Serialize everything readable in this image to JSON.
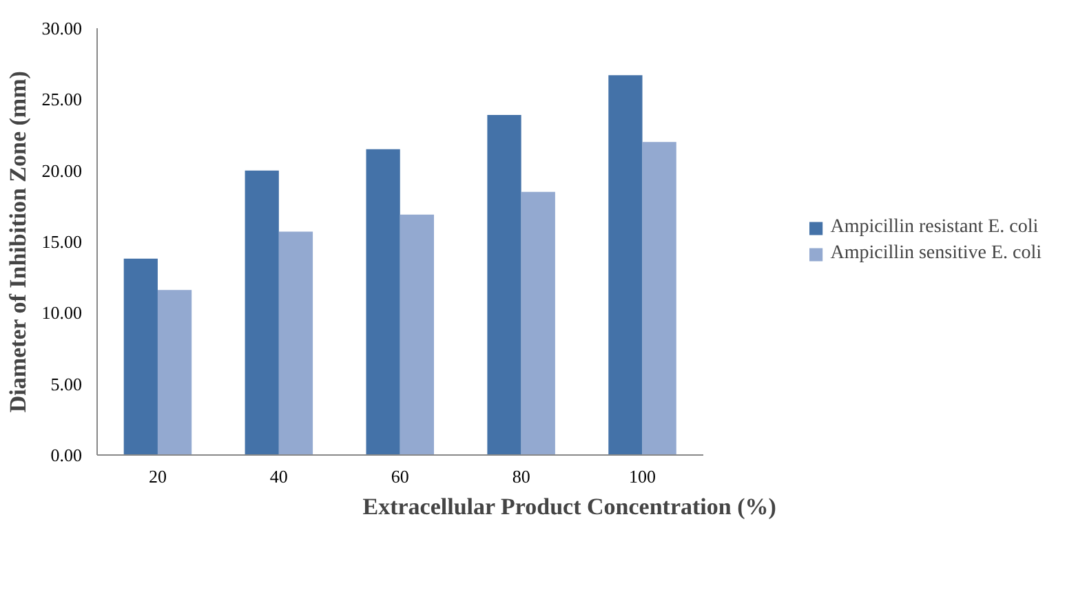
{
  "chart_data": {
    "type": "bar",
    "xlabel": "Extracellular Product Concentration (%)",
    "ylabel": "Diameter of Inhibition Zone (mm)",
    "categories": [
      "20",
      "40",
      "60",
      "80",
      "100"
    ],
    "series": [
      {
        "name": "Ampicillin resistant E. coli",
        "color": "#4472a8",
        "values": [
          13.8,
          20.0,
          21.5,
          23.9,
          26.7
        ]
      },
      {
        "name": "Ampicillin sensitive E. coli",
        "color": "#93a9d0",
        "values": [
          11.6,
          15.7,
          16.9,
          18.5,
          22.0
        ]
      }
    ],
    "ylim": [
      0,
      30
    ],
    "yticks": [
      {
        "value": 0,
        "label": "0.00"
      },
      {
        "value": 5,
        "label": "5.00"
      },
      {
        "value": 10,
        "label": "10.00"
      },
      {
        "value": 15,
        "label": "15.00"
      },
      {
        "value": 20,
        "label": "20.00"
      },
      {
        "value": 25,
        "label": "25.00"
      },
      {
        "value": 30,
        "label": "30.00"
      }
    ],
    "grid": false,
    "legend": "right"
  }
}
